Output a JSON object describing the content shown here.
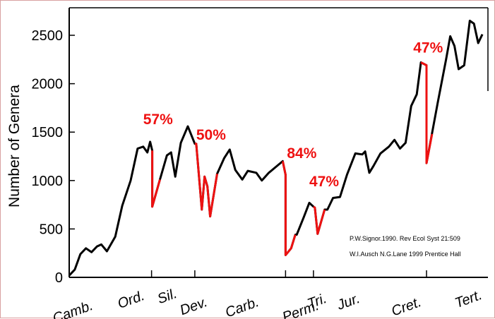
{
  "chart_data": {
    "type": "line",
    "ylabel": "Number of Genera",
    "ylim": [
      0,
      2750
    ],
    "yticks": [
      0,
      500,
      1000,
      1500,
      2000,
      2500
    ],
    "periods": [
      "Camb.",
      "Ord.",
      "Sil.",
      "Dev.",
      "Carb.",
      "Perm.",
      "Tri.",
      "Jur.",
      "Cret.",
      "Tert."
    ],
    "grid": false,
    "series": [
      {
        "color": "#000000",
        "points": [
          [
            0,
            20
          ],
          [
            8,
            80
          ],
          [
            16,
            240
          ],
          [
            24,
            300
          ],
          [
            32,
            260
          ],
          [
            40,
            320
          ],
          [
            46,
            340
          ],
          [
            54,
            270
          ],
          [
            66,
            420
          ],
          [
            76,
            740
          ],
          [
            88,
            1000
          ],
          [
            98,
            1330
          ],
          [
            106,
            1350
          ],
          [
            112,
            1290
          ],
          [
            116,
            1400
          ],
          [
            119,
            1310
          ],
          [
            119,
            730
          ],
          [
            130,
            1010
          ],
          [
            140,
            1260
          ],
          [
            146,
            1290
          ],
          [
            152,
            1040
          ],
          [
            160,
            1390
          ],
          [
            170,
            1560
          ],
          [
            180,
            1380
          ],
          [
            182,
            1380
          ],
          [
            190,
            700
          ],
          [
            194,
            1040
          ],
          [
            198,
            940
          ],
          [
            202,
            630
          ],
          [
            212,
            1070
          ],
          [
            222,
            1230
          ],
          [
            230,
            1320
          ],
          [
            238,
            1110
          ],
          [
            248,
            1010
          ],
          [
            256,
            1100
          ],
          [
            268,
            1080
          ],
          [
            276,
            1000
          ],
          [
            286,
            1080
          ],
          [
            296,
            1140
          ],
          [
            306,
            1200
          ],
          [
            310,
            1060
          ],
          [
            310,
            230
          ],
          [
            318,
            300
          ],
          [
            324,
            440
          ],
          [
            326,
            440
          ],
          [
            336,
            620
          ],
          [
            344,
            770
          ],
          [
            350,
            730
          ],
          [
            352,
            720
          ],
          [
            356,
            450
          ],
          [
            366,
            700
          ],
          [
            370,
            700
          ],
          [
            378,
            820
          ],
          [
            388,
            830
          ],
          [
            398,
            1060
          ],
          [
            410,
            1280
          ],
          [
            420,
            1270
          ],
          [
            424,
            1300
          ],
          [
            430,
            1080
          ],
          [
            436,
            1150
          ],
          [
            446,
            1280
          ],
          [
            458,
            1350
          ],
          [
            466,
            1420
          ],
          [
            474,
            1330
          ],
          [
            482,
            1390
          ],
          [
            490,
            1770
          ],
          [
            498,
            1890
          ],
          [
            504,
            2220
          ],
          [
            512,
            2190
          ],
          [
            512,
            1180
          ],
          [
            528,
            1800
          ],
          [
            540,
            2250
          ],
          [
            546,
            2490
          ],
          [
            552,
            2390
          ],
          [
            558,
            2150
          ],
          [
            566,
            2190
          ],
          [
            574,
            2650
          ],
          [
            580,
            2620
          ],
          [
            586,
            2420
          ],
          [
            592,
            2510
          ]
        ]
      },
      {
        "color": "#ee1111",
        "segments": [
          [
            [
              119,
              1310
            ],
            [
              119,
              730
            ],
            [
              130,
              1010
            ]
          ],
          [
            [
              180,
              1380
            ],
            [
              182,
              1380
            ],
            [
              190,
              700
            ],
            [
              194,
              1040
            ],
            [
              198,
              940
            ],
            [
              202,
              630
            ],
            [
              212,
              1070
            ]
          ],
          [
            [
              306,
              1200
            ],
            [
              310,
              1060
            ],
            [
              310,
              230
            ],
            [
              318,
              300
            ],
            [
              324,
              440
            ]
          ],
          [
            [
              350,
              730
            ],
            [
              352,
              720
            ],
            [
              356,
              450
            ],
            [
              366,
              700
            ]
          ],
          [
            [
              504,
              2220
            ],
            [
              512,
              2190
            ],
            [
              512,
              1180
            ],
            [
              520,
              1480
            ]
          ]
        ]
      }
    ],
    "annotations": [
      {
        "text": "57%",
        "x": 106,
        "y": 1580
      },
      {
        "text": "50%",
        "x": 182,
        "y": 1420
      },
      {
        "text": "84%",
        "x": 312,
        "y": 1230
      },
      {
        "text": "47%",
        "x": 344,
        "y": 940
      },
      {
        "text": "47%",
        "x": 493,
        "y": 2320
      }
    ]
  },
  "credits": [
    "P.W.Signor.1990. Rev Ecol Syst 21:509",
    "W.I.Ausch N.G.Lane 1999 Prentice Hall"
  ]
}
